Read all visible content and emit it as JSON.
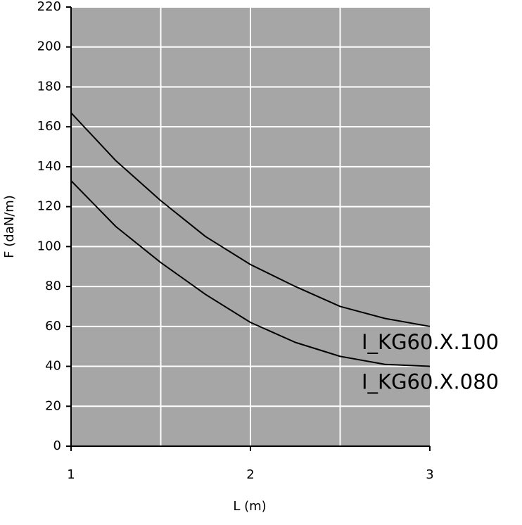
{
  "chart_data": {
    "type": "line",
    "x_label": "L (m)",
    "y_label": "F (daN/m)",
    "x": [
      1,
      1.25,
      1.5,
      1.75,
      2,
      2.25,
      2.5,
      2.75,
      3
    ],
    "series": [
      {
        "name": "I_KG60.X.100",
        "color": "#000000",
        "values": [
          167,
          143,
          123,
          105,
          91,
          80,
          70,
          64,
          60
        ]
      },
      {
        "name": "I_KG60.X.080",
        "color": "#000000",
        "values": [
          133,
          110,
          92,
          76,
          62,
          52,
          45,
          41,
          40
        ]
      }
    ],
    "xlim": [
      1,
      3
    ],
    "xticks": [
      1,
      2,
      3
    ],
    "x_gridlines": [
      1.5,
      2,
      2.5
    ],
    "ylim": [
      0,
      220
    ],
    "yticks": [
      0,
      20,
      40,
      60,
      80,
      100,
      120,
      140,
      160,
      180,
      200,
      220
    ],
    "grid": true,
    "plot_background": "#a6a6a6"
  }
}
